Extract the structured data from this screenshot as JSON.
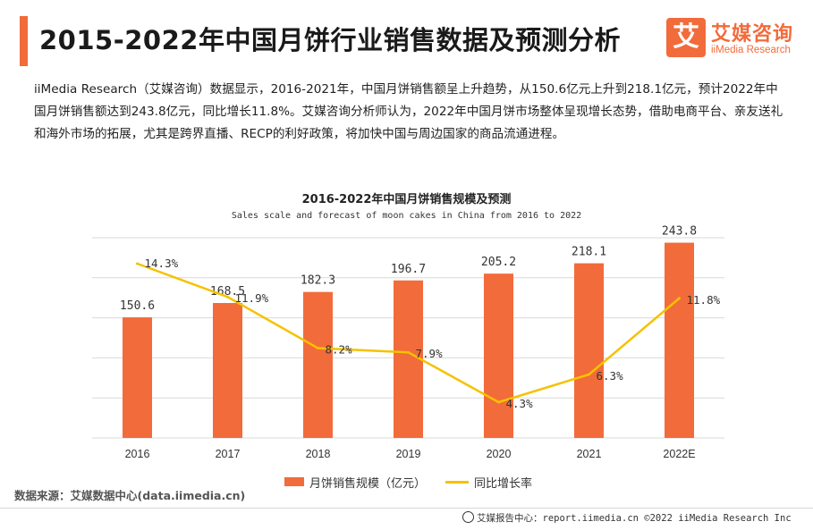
{
  "header": {
    "title": "2015-2022年中国月饼行业销售数据及预测分析",
    "brand_mark": "艾",
    "brand_name": "艾媒咨询",
    "brand_en": "iiMedia Research"
  },
  "paragraph": "iiMedia Research（艾媒咨询）数据显示，2016-2021年，中国月饼销售额呈上升趋势，从150.6亿元上升到218.1亿元，预计2022年中国月饼销售额达到243.8亿元，同比增长11.8%。艾媒咨询分析师认为，2022年中国月饼市场整体呈现增长态势，借助电商平台、亲友送礼和海外市场的拓展，尤其是跨界直播、RECP的利好政策，将加快中国与周边国家的商品流通进程。",
  "chart_data": {
    "type": "bar",
    "title": "2016-2022年中国月饼销售规模及预测",
    "subtitle": "Sales scale and forecast of moon cakes in China from 2016 to 2022",
    "categories": [
      "2016",
      "2017",
      "2018",
      "2019",
      "2020",
      "2021",
      "2022E"
    ],
    "series": [
      {
        "name": "月饼销售规模（亿元）",
        "type": "bar",
        "values": [
          150.6,
          168.5,
          182.3,
          196.7,
          205.2,
          218.1,
          243.8
        ],
        "labels": [
          "150.6",
          "168.5",
          "182.3",
          "196.7",
          "205.2",
          "218.1",
          "243.8"
        ]
      },
      {
        "name": "同比增长率",
        "type": "line",
        "values": [
          14.3,
          11.9,
          8.2,
          7.9,
          4.3,
          6.3,
          11.8
        ],
        "labels": [
          "14.3%",
          "11.9%",
          "8.2%",
          "7.9%",
          "4.3%",
          "6.3%",
          "11.8%"
        ]
      }
    ],
    "ylim_bar": [
      0,
      250
    ],
    "ylim_line": [
      0,
      16
    ],
    "grid": true,
    "legend_position": "bottom",
    "colors": {
      "bar": "#f26b3a",
      "line": "#f5c200",
      "grid": "#d9d9d9"
    }
  },
  "source": "数据来源：艾媒数据中心(data.iimedia.cn)",
  "footer": "艾媒报告中心：report.iimedia.cn  ©2022  iiMedia Research  Inc"
}
